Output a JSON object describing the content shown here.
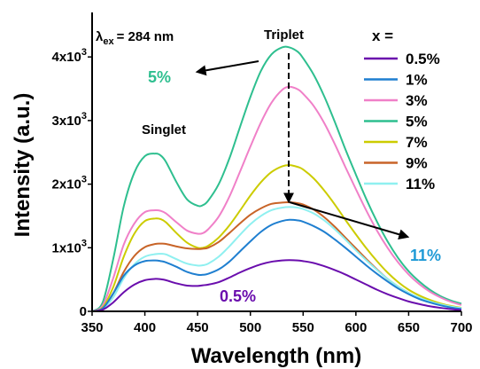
{
  "chart_data": {
    "type": "line",
    "xlabel": "Wavelength (nm)",
    "ylabel": "Intensity (a.u.)",
    "xlim": [
      350,
      700
    ],
    "ylim": [
      0,
      4700
    ],
    "x_ticks": [
      350,
      400,
      450,
      500,
      550,
      600,
      650,
      700
    ],
    "y_ticks": [
      {
        "value": 0,
        "mantissa": "0",
        "exp": ""
      },
      {
        "value": 1000,
        "mantissa": "1x10",
        "exp": "3"
      },
      {
        "value": 2000,
        "mantissa": "2x10",
        "exp": "3"
      },
      {
        "value": 3000,
        "mantissa": "3x10",
        "exp": "3"
      },
      {
        "value": 4000,
        "mantissa": "4x10",
        "exp": "3"
      }
    ],
    "grid": false,
    "legend": {
      "title": "x =",
      "position": "top-right"
    },
    "x": [
      350,
      360,
      370,
      380,
      390,
      400,
      410,
      415,
      420,
      430,
      440,
      450,
      455,
      460,
      470,
      480,
      490,
      500,
      510,
      520,
      530,
      537,
      545,
      550,
      560,
      570,
      580,
      590,
      600,
      610,
      620,
      630,
      640,
      650,
      660,
      670,
      680,
      690,
      700
    ],
    "series": [
      {
        "name": "0.5%",
        "color": "#6a0dad",
        "values": [
          0,
          25,
          140,
          300,
          420,
          490,
          510,
          505,
          490,
          440,
          405,
          400,
          410,
          420,
          460,
          530,
          610,
          680,
          740,
          780,
          800,
          805,
          800,
          790,
          760,
          710,
          650,
          580,
          500,
          420,
          340,
          270,
          210,
          155,
          115,
          80,
          55,
          35,
          20
        ]
      },
      {
        "name": "1%",
        "color": "#1f7fd0",
        "values": [
          0,
          45,
          280,
          560,
          720,
          790,
          800,
          790,
          770,
          700,
          620,
          575,
          575,
          590,
          660,
          780,
          940,
          1100,
          1250,
          1360,
          1420,
          1440,
          1430,
          1410,
          1340,
          1250,
          1130,
          1000,
          860,
          720,
          590,
          470,
          360,
          270,
          195,
          140,
          95,
          60,
          35
        ]
      },
      {
        "name": "3%",
        "color": "#f080c8",
        "values": [
          0,
          90,
          520,
          1050,
          1380,
          1560,
          1590,
          1580,
          1540,
          1400,
          1270,
          1220,
          1230,
          1290,
          1490,
          1800,
          2190,
          2590,
          2970,
          3280,
          3480,
          3530,
          3490,
          3420,
          3230,
          2960,
          2630,
          2270,
          1920,
          1580,
          1270,
          1000,
          770,
          580,
          430,
          310,
          220,
          150,
          100
        ]
      },
      {
        "name": "5%",
        "color": "#2ebf8f",
        "values": [
          0,
          140,
          820,
          1650,
          2180,
          2440,
          2480,
          2450,
          2350,
          2030,
          1760,
          1660,
          1670,
          1740,
          2000,
          2400,
          2890,
          3370,
          3780,
          4040,
          4150,
          4150,
          4080,
          3980,
          3720,
          3380,
          2980,
          2550,
          2150,
          1760,
          1410,
          1100,
          840,
          630,
          470,
          340,
          240,
          170,
          120
        ]
      },
      {
        "name": "7%",
        "color": "#cccc00",
        "values": [
          0,
          60,
          380,
          860,
          1220,
          1420,
          1460,
          1450,
          1400,
          1230,
          1080,
          1000,
          1000,
          1030,
          1160,
          1350,
          1580,
          1820,
          2030,
          2190,
          2280,
          2300,
          2270,
          2230,
          2090,
          1900,
          1680,
          1440,
          1210,
          990,
          790,
          610,
          460,
          340,
          250,
          180,
          125,
          85,
          55
        ]
      },
      {
        "name": "9%",
        "color": "#c86428",
        "values": [
          0,
          45,
          280,
          620,
          870,
          1010,
          1060,
          1065,
          1060,
          1020,
          990,
          980,
          985,
          1000,
          1090,
          1230,
          1380,
          1520,
          1620,
          1690,
          1710,
          1715,
          1700,
          1680,
          1600,
          1480,
          1330,
          1160,
          990,
          820,
          660,
          510,
          390,
          290,
          210,
          150,
          105,
          70,
          45
        ]
      },
      {
        "name": "11%",
        "color": "#8ff0f0",
        "values": [
          0,
          35,
          220,
          520,
          740,
          860,
          900,
          905,
          895,
          820,
          750,
          720,
          725,
          750,
          860,
          1020,
          1200,
          1370,
          1500,
          1590,
          1630,
          1640,
          1630,
          1610,
          1540,
          1430,
          1290,
          1130,
          960,
          800,
          650,
          510,
          390,
          290,
          215,
          155,
          110,
          75,
          50
        ]
      }
    ],
    "annotations": {
      "excitation_prefix": "λ",
      "excitation_sub": "ex",
      "excitation_value": "= 284 nm",
      "triplet": "Triplet",
      "singlet": "Singlet",
      "label_high": {
        "text": "5%",
        "color": "#2ebf8f"
      },
      "label_low": {
        "text": "0.5%",
        "color": "#6a0dad"
      },
      "label_end": {
        "text": "11%",
        "color": "#1f9ad6"
      }
    }
  }
}
